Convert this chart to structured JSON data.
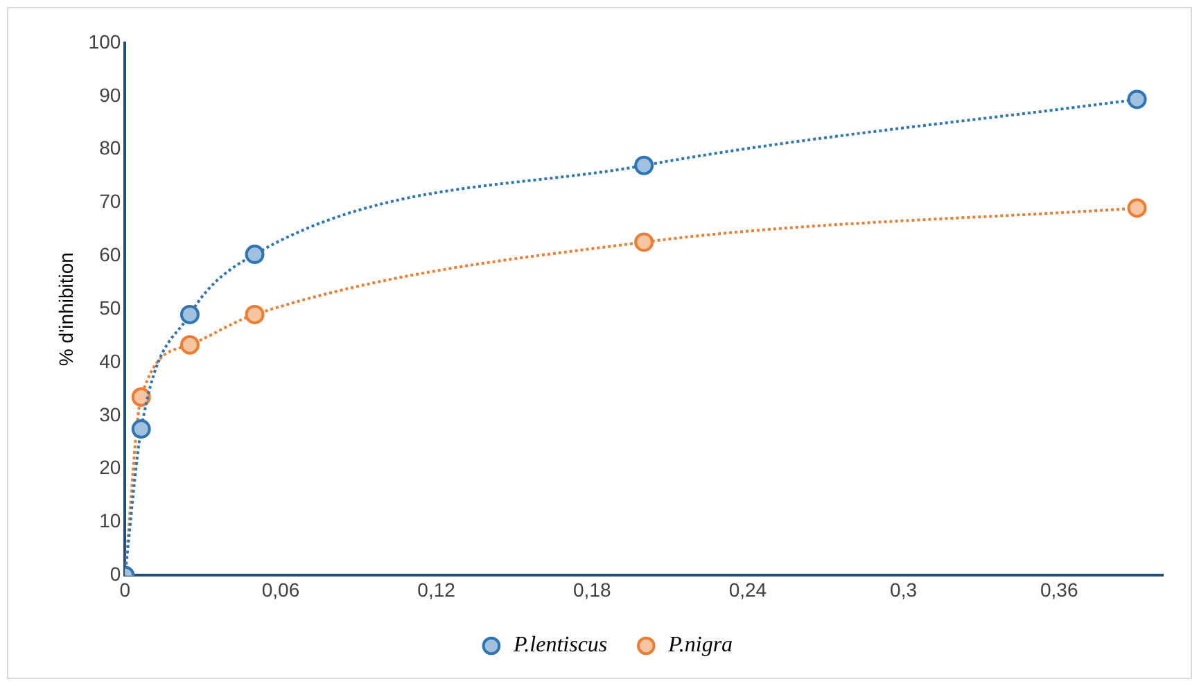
{
  "chart_data": {
    "type": "line",
    "ylabel": "% d'inhibition",
    "x": [
      0,
      0.00625,
      0.025,
      0.05,
      0.2,
      0.39
    ],
    "series": [
      {
        "name": "P.lentiscus",
        "color": "#2e75b6",
        "values": [
          0,
          27.5,
          49,
          60.3,
          77,
          89.4
        ]
      },
      {
        "name": "P.nigra",
        "color": "#ed7d31",
        "values": [
          0,
          33.5,
          43.3,
          49,
          62.6,
          69
        ]
      }
    ],
    "xlim": [
      0,
      0.4
    ],
    "xticks": [
      0,
      {
        "value": 0.06,
        "label": "0,06"
      },
      {
        "value": 0.12,
        "label": "0,12"
      },
      {
        "value": 0.18,
        "label": "0,18"
      },
      {
        "value": 0.24,
        "label": "0,24"
      },
      {
        "value": 0.3,
        "label": "0,3"
      },
      {
        "value": 0.36,
        "label": "0,36"
      }
    ],
    "ylim": [
      0,
      100
    ],
    "yticks": [
      0,
      10,
      20,
      30,
      40,
      50,
      60,
      70,
      80,
      90,
      100
    ],
    "grid": false,
    "legend": "bottom",
    "marker": "circle",
    "line_style": "dotted"
  }
}
